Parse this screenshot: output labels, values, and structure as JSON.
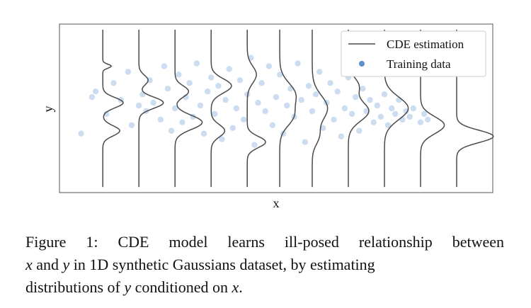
{
  "chart_data": {
    "type": "scatter",
    "xlabel": "x",
    "ylabel": "y",
    "grid": false,
    "ticks": false,
    "legend": {
      "placement": "top-right",
      "entries": [
        {
          "label": "CDE estimation",
          "marker": "line",
          "color": "#4a4a4a"
        },
        {
          "label": "Training data",
          "marker": "circle",
          "color": "#5b8fcf"
        }
      ]
    },
    "xlim": [
      0,
      12
    ],
    "ylim": [
      -3,
      3
    ],
    "series": [
      {
        "name": "Training data",
        "color": "#5b8fcf",
        "opacity": 0.3,
        "points": [
          [
            0.6,
            -0.9
          ],
          [
            0.9,
            0.4
          ],
          [
            1.0,
            0.6
          ],
          [
            1.3,
            -0.2
          ],
          [
            1.5,
            0.9
          ],
          [
            1.7,
            0.3
          ],
          [
            1.9,
            1.3
          ],
          [
            2.0,
            -0.6
          ],
          [
            2.2,
            0.1
          ],
          [
            2.3,
            0.5
          ],
          [
            2.4,
            -0.1
          ],
          [
            2.5,
            1.0
          ],
          [
            2.6,
            0.2
          ],
          [
            2.8,
            -0.4
          ],
          [
            2.9,
            1.5
          ],
          [
            3.0,
            0.7
          ],
          [
            3.1,
            -0.8
          ],
          [
            3.2,
            0.0
          ],
          [
            3.3,
            1.2
          ],
          [
            3.4,
            -0.5
          ],
          [
            3.5,
            0.4
          ],
          [
            3.6,
            0.9
          ],
          [
            3.7,
            -0.3
          ],
          [
            3.8,
            1.6
          ],
          [
            3.9,
            0.1
          ],
          [
            4.0,
            -0.9
          ],
          [
            4.1,
            0.6
          ],
          [
            4.2,
            1.1
          ],
          [
            4.3,
            -0.2
          ],
          [
            4.4,
            0.8
          ],
          [
            4.5,
            -1.1
          ],
          [
            4.6,
            0.3
          ],
          [
            4.7,
            1.4
          ],
          [
            4.8,
            -0.7
          ],
          [
            4.9,
            0.0
          ],
          [
            5.0,
            1.0
          ],
          [
            5.1,
            -0.4
          ],
          [
            5.2,
            0.5
          ],
          [
            5.3,
            1.8
          ],
          [
            5.4,
            -1.3
          ],
          [
            5.5,
            0.2
          ],
          [
            5.6,
            0.9
          ],
          [
            5.7,
            -0.1
          ],
          [
            5.8,
            1.5
          ],
          [
            5.9,
            -0.6
          ],
          [
            6.0,
            0.4
          ],
          [
            6.1,
            1.2
          ],
          [
            6.2,
            -0.9
          ],
          [
            6.3,
            0.1
          ],
          [
            6.4,
            0.7
          ],
          [
            6.5,
            -0.3
          ],
          [
            6.6,
            1.6
          ],
          [
            6.7,
            0.3
          ],
          [
            6.8,
            -1.2
          ],
          [
            6.9,
            0.8
          ],
          [
            7.0,
            -0.1
          ],
          [
            7.1,
            0.5
          ],
          [
            7.2,
            1.3
          ],
          [
            7.3,
            -0.7
          ],
          [
            7.4,
            0.2
          ],
          [
            7.5,
            0.9
          ],
          [
            7.6,
            -0.4
          ],
          [
            7.7,
            0.6
          ],
          [
            7.8,
            -1.0
          ],
          [
            7.9,
            0.0
          ],
          [
            8.0,
            1.1
          ],
          [
            8.1,
            -0.2
          ],
          [
            8.2,
            0.4
          ],
          [
            8.3,
            -0.8
          ],
          [
            8.4,
            0.7
          ],
          [
            8.5,
            -0.1
          ],
          [
            8.6,
            0.3
          ],
          [
            8.7,
            -0.5
          ],
          [
            8.8,
            0.1
          ],
          [
            8.9,
            -0.3
          ],
          [
            9.0,
            0.5
          ],
          [
            9.1,
            -0.6
          ],
          [
            9.2,
            0.0
          ],
          [
            9.3,
            -0.2
          ],
          [
            9.4,
            0.3
          ],
          [
            9.5,
            -0.4
          ],
          [
            9.6,
            -0.1
          ],
          [
            9.7,
            -0.3
          ],
          [
            9.8,
            0.0
          ],
          [
            10.0,
            -0.5
          ],
          [
            10.1,
            -0.2
          ],
          [
            10.2,
            -0.4
          ]
        ]
      }
    ],
    "cde_estimation": {
      "name": "CDE estimation",
      "color": "#4a4a4a",
      "curves": [
        {
          "x": 1.2,
          "scale": 1.0,
          "components": [
            {
              "mu": 0.2,
              "sigma": 0.18,
              "w": 0.6
            },
            {
              "mu": -0.8,
              "sigma": 0.18,
              "w": 0.5
            },
            {
              "mu": 1.5,
              "sigma": 0.07,
              "w": 0.25
            }
          ]
        },
        {
          "x": 2.2,
          "scale": 0.9,
          "components": [
            {
              "mu": 0.2,
              "sigma": 0.2,
              "w": 0.8
            },
            {
              "mu": 1.0,
              "sigma": 0.18,
              "w": 0.3
            }
          ]
        },
        {
          "x": 3.2,
          "scale": 1.0,
          "components": [
            {
              "mu": -0.5,
              "sigma": 0.25,
              "w": 0.8
            },
            {
              "mu": 0.6,
              "sigma": 0.2,
              "w": 0.4
            }
          ]
        },
        {
          "x": 4.2,
          "scale": 1.0,
          "components": [
            {
              "mu": 0.8,
              "sigma": 0.25,
              "w": 0.6
            },
            {
              "mu": -0.8,
              "sigma": 0.22,
              "w": 0.4
            }
          ]
        },
        {
          "x": 5.2,
          "scale": 0.9,
          "components": [
            {
              "mu": -1.2,
              "sigma": 0.2,
              "w": 0.6
            },
            {
              "mu": 1.2,
              "sigma": 0.3,
              "w": 0.3
            }
          ]
        },
        {
          "x": 6.1,
          "scale": 0.9,
          "components": [
            {
              "mu": 0.5,
              "sigma": 0.4,
              "w": 0.5
            },
            {
              "mu": -0.3,
              "sigma": 0.35,
              "w": 0.4
            }
          ]
        },
        {
          "x": 7.0,
          "scale": 0.9,
          "components": [
            {
              "mu": 0.0,
              "sigma": 0.45,
              "w": 0.5
            },
            {
              "mu": -1.0,
              "sigma": 0.3,
              "w": 0.2
            }
          ]
        },
        {
          "x": 8.0,
          "scale": 1.0,
          "components": [
            {
              "mu": -0.1,
              "sigma": 0.35,
              "w": 0.6
            },
            {
              "mu": 0.8,
              "sigma": 0.3,
              "w": 0.3
            }
          ]
        },
        {
          "x": 9.0,
          "scale": 1.0,
          "components": [
            {
              "mu": 0.0,
              "sigma": 0.4,
              "w": 0.7
            }
          ]
        },
        {
          "x": 10.0,
          "scale": 1.0,
          "components": [
            {
              "mu": -0.6,
              "sigma": 0.3,
              "w": 0.7
            }
          ]
        },
        {
          "x": 11.0,
          "scale": 1.2,
          "components": [
            {
              "mu": -1.0,
              "sigma": 0.22,
              "w": 0.9
            }
          ]
        }
      ]
    }
  },
  "caption": {
    "lines": [
      [
        {
          "t": "Figure 1: CDE model learns ill-posed relationship between",
          "i": false
        }
      ],
      [
        {
          "t": "x",
          "i": true
        },
        {
          "t": " and ",
          "i": false
        },
        {
          "t": "y",
          "i": true
        },
        {
          "t": " in 1D synthetic Gaussians dataset, by estimating",
          "i": false
        }
      ],
      [
        {
          "t": "distributions of ",
          "i": false
        },
        {
          "t": "y",
          "i": true
        },
        {
          "t": " conditioned on ",
          "i": false
        },
        {
          "t": "x",
          "i": true
        },
        {
          "t": ".",
          "i": false
        }
      ]
    ]
  }
}
